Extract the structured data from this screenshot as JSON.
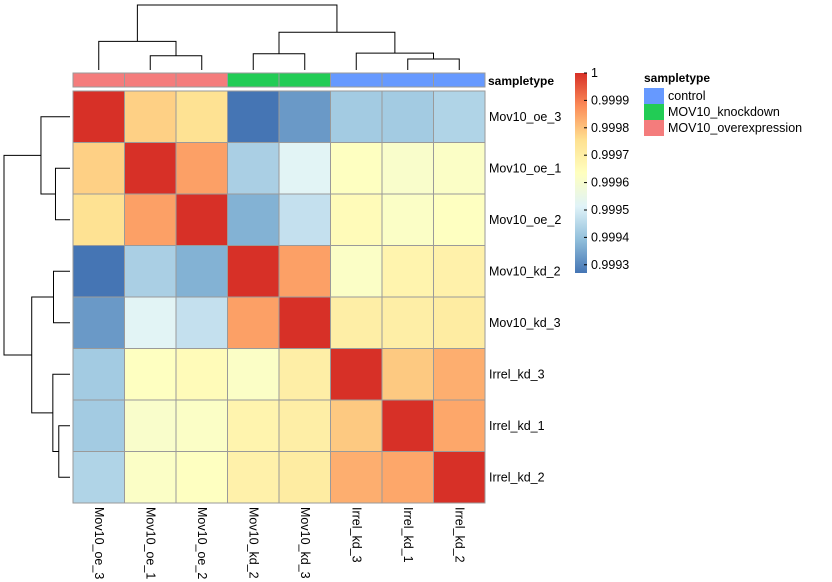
{
  "chart_data": {
    "type": "heatmap",
    "title": "",
    "row_labels": [
      "Mov10_oe_3",
      "Mov10_oe_1",
      "Mov10_oe_2",
      "Mov10_kd_2",
      "Mov10_kd_3",
      "Irrel_kd_3",
      "Irrel_kd_1",
      "Irrel_kd_2"
    ],
    "col_labels": [
      "Mov10_oe_3",
      "Mov10_oe_1",
      "Mov10_oe_2",
      "Mov10_kd_2",
      "Mov10_kd_3",
      "Irrel_kd_3",
      "Irrel_kd_1",
      "Irrel_kd_2"
    ],
    "values": [
      [
        1.0,
        0.99978,
        0.99975,
        0.99927,
        0.99933,
        0.99942,
        0.99942,
        0.99944
      ],
      [
        0.99978,
        1.0,
        0.99985,
        0.99943,
        0.99952,
        0.99963,
        0.99961,
        0.99962
      ],
      [
        0.99975,
        0.99985,
        1.0,
        0.99937,
        0.99947,
        0.99965,
        0.99962,
        0.99963
      ],
      [
        0.99927,
        0.99943,
        0.99937,
        1.0,
        0.99985,
        0.99962,
        0.99968,
        0.99969
      ],
      [
        0.99933,
        0.99952,
        0.99947,
        0.99985,
        1.0,
        0.9997,
        0.9997,
        0.99971
      ],
      [
        0.99942,
        0.99963,
        0.99965,
        0.99962,
        0.9997,
        1.0,
        0.99979,
        0.99983
      ],
      [
        0.99942,
        0.99961,
        0.99962,
        0.99968,
        0.9997,
        0.99979,
        1.0,
        0.99984
      ],
      [
        0.99944,
        0.99962,
        0.99963,
        0.99969,
        0.99971,
        0.99983,
        0.99984,
        1.0
      ]
    ],
    "color_scale": {
      "min": 0.99927,
      "max": 1.0,
      "colors": [
        "#4575b4",
        "#91bfdb",
        "#e0f3f8",
        "#ffffbf",
        "#fee090",
        "#fc8d59",
        "#d73027"
      ],
      "ticks": [
        0.9993,
        0.9994,
        0.9995,
        0.9996,
        0.9997,
        0.9998,
        0.9999,
        1.0
      ],
      "tick_labels": [
        "0.9993",
        "0.9994",
        "0.9995",
        "0.9996",
        "0.9997",
        "0.9998",
        "0.9999",
        "1"
      ]
    },
    "annotation": {
      "title": "sampletype",
      "column_groups": [
        "MOV10_overexpression",
        "MOV10_overexpression",
        "MOV10_overexpression",
        "MOV10_knockdown",
        "MOV10_knockdown",
        "control",
        "control",
        "control"
      ],
      "legend": [
        {
          "label": "control",
          "color": "#6699ff"
        },
        {
          "label": "MOV10_knockdown",
          "color": "#22cc55"
        },
        {
          "label": "MOV10_overexpression",
          "color": "#f47c7c"
        }
      ]
    },
    "dendrogram": {
      "leaf_order": [
        "Mov10_oe_3",
        "Mov10_oe_1",
        "Mov10_oe_2",
        "Mov10_kd_2",
        "Mov10_kd_3",
        "Irrel_kd_3",
        "Irrel_kd_1",
        "Irrel_kd_2"
      ],
      "merges": [
        {
          "left": "Mov10_oe_1",
          "right": "Mov10_oe_2",
          "height": 0.22
        },
        {
          "left": "Mov10_oe_3",
          "right": "node1",
          "height": 0.44
        },
        {
          "left": "Mov10_kd_2",
          "right": "Mov10_kd_3",
          "height": 0.25
        },
        {
          "left": "Irrel_kd_1",
          "right": "Irrel_kd_2",
          "height": 0.17
        },
        {
          "left": "Irrel_kd_3",
          "right": "node4",
          "height": 0.26
        },
        {
          "left": "node3",
          "right": "node5",
          "height": 0.58
        },
        {
          "left": "node2",
          "right": "node6",
          "height": 1.0
        }
      ]
    }
  }
}
